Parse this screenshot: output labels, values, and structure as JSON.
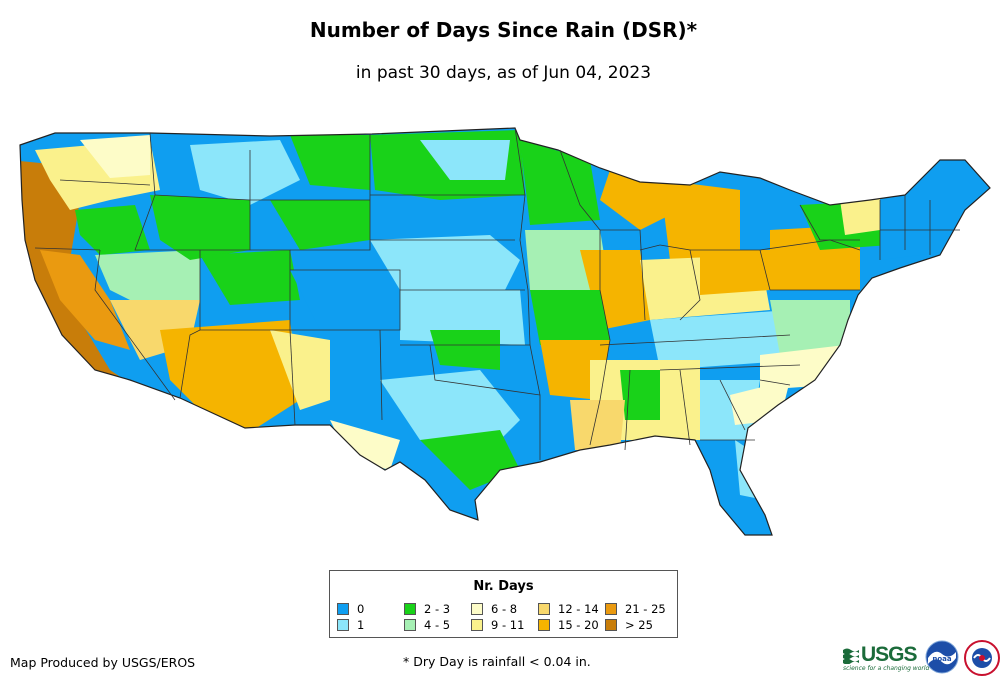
{
  "title": "Number of Days Since Rain (DSR)*",
  "subtitle": "in past 30 days, as of Jun 04, 2023",
  "legend": {
    "title": "Nr. Days",
    "items": [
      {
        "label": "0",
        "color": "#0f9ef0"
      },
      {
        "label": "1",
        "color": "#8ce6fa"
      },
      {
        "label": "2 - 3",
        "color": "#19d219"
      },
      {
        "label": "4 - 5",
        "color": "#a6f0b4"
      },
      {
        "label": "6 - 8",
        "color": "#fdfcc8"
      },
      {
        "label": "9 - 11",
        "color": "#faf18c"
      },
      {
        "label": "12 - 14",
        "color": "#f8d86c"
      },
      {
        "label": "15 - 20",
        "color": "#f5b400"
      },
      {
        "label": "21 - 25",
        "color": "#ea9a10"
      },
      {
        "label": "> 25",
        "color": "#c87d0a"
      }
    ]
  },
  "footer": {
    "producer": "Map Produced by USGS/EROS",
    "note": "* Dry Day is rainfall < 0.04 in."
  },
  "logos": {
    "usgs": "USGS",
    "usgs_tagline": "science for a changing world",
    "noaa": "noaa",
    "nws": "National Weather Service"
  }
}
